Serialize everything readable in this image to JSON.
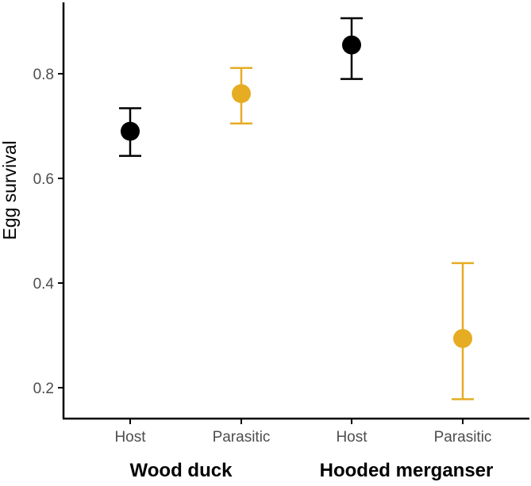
{
  "chart_data": {
    "type": "scatter",
    "ylabel": "Egg survival",
    "ylim": [
      0.15,
      0.93
    ],
    "yticks": [
      0.2,
      0.4,
      0.6,
      0.8
    ],
    "grid": false,
    "legend": "none",
    "colors": {
      "host": "#000000",
      "parasitic": "#E6AC22"
    },
    "points": [
      {
        "category": "Host",
        "group": "Wood duck",
        "type": "host",
        "estimate": 0.69,
        "lower": 0.643,
        "upper": 0.734
      },
      {
        "category": "Parasitic",
        "group": "Wood duck",
        "type": "parasitic",
        "estimate": 0.762,
        "lower": 0.705,
        "upper": 0.811
      },
      {
        "category": "Host",
        "group": "Hooded merganser",
        "type": "host",
        "estimate": 0.855,
        "lower": 0.79,
        "upper": 0.906
      },
      {
        "category": "Parasitic",
        "group": "Hooded merganser",
        "type": "parasitic",
        "estimate": 0.294,
        "lower": 0.178,
        "upper": 0.438
      }
    ],
    "groups": [
      "Wood duck",
      "Hooded merganser"
    ]
  }
}
